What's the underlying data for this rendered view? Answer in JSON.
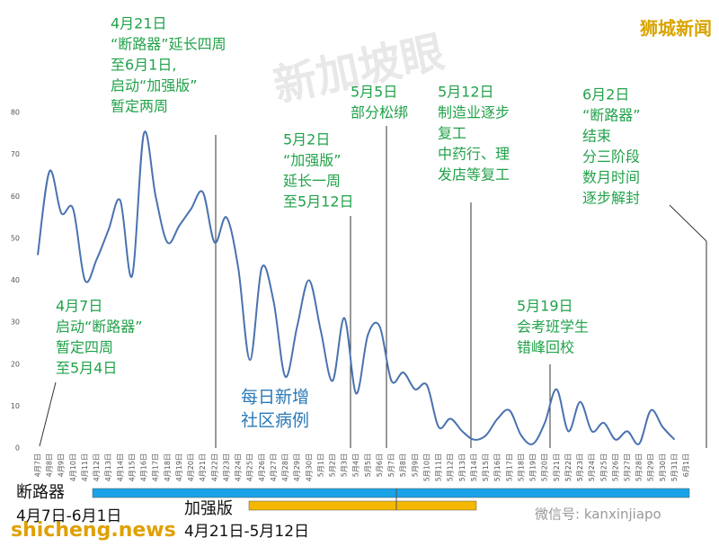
{
  "chart_data": {
    "type": "line",
    "categories": [
      "4月7日",
      "4月8日",
      "4月9日",
      "4月10日",
      "4月11日",
      "4月12日",
      "4月13日",
      "4月14日",
      "4月15日",
      "4月16日",
      "4月17日",
      "4月18日",
      "4月19日",
      "4月20日",
      "4月21日",
      "4月22日",
      "4月23日",
      "4月24日",
      "4月25日",
      "4月26日",
      "4月27日",
      "4月28日",
      "4月29日",
      "4月30日",
      "5月1日",
      "5月2日",
      "5月3日",
      "5月4日",
      "5月5日",
      "5月6日",
      "5月7日",
      "5月8日",
      "5月9日",
      "5月10日",
      "5月11日",
      "5月12日",
      "5月13日",
      "5月14日",
      "5月15日",
      "5月16日",
      "5月17日",
      "5月18日",
      "5月19日",
      "5月20日",
      "5月21日",
      "5月22日",
      "5月23日",
      "5月24日",
      "5月25日",
      "5月26日",
      "5月27日",
      "5月28日",
      "5月29日",
      "5月30日",
      "5月31日",
      "6月1日"
    ],
    "series": [
      {
        "name": "每日新增社区病例",
        "color": "#4a72b0",
        "values": [
          46,
          66,
          56,
          57,
          40,
          45,
          52,
          59,
          41,
          75,
          60,
          49,
          53,
          57,
          61,
          49,
          55,
          43,
          21,
          43,
          35,
          17,
          29,
          40,
          28,
          16,
          31,
          13,
          27,
          29,
          16,
          18,
          14,
          15,
          5,
          7,
          4,
          2,
          3,
          7,
          9,
          3,
          1,
          6,
          14,
          4,
          11,
          4,
          6,
          2,
          4,
          1,
          9,
          5,
          2,
          null
        ]
      }
    ],
    "series_label": [
      "每日新增",
      "社区病例"
    ],
    "ylim": [
      0,
      80
    ],
    "yticks": [
      0,
      10,
      20,
      30,
      40,
      50,
      60,
      70,
      80
    ],
    "annotations": [
      {
        "lines": [
          "4月21日",
          "“断路器”延长四周",
          "至6月1日,",
          "启动“加强版”",
          "暂定两周"
        ]
      },
      {
        "lines": [
          "4月7日",
          "启动“断路器”",
          "暂定四周",
          "至5月4日"
        ]
      },
      {
        "lines": [
          "5月2日",
          "“加强版”",
          "延长一周",
          "至5月12日"
        ]
      },
      {
        "lines": [
          "5月5日",
          "部分松绑"
        ]
      },
      {
        "lines": [
          "5月12日",
          "制造业逐步",
          "复工",
          "中药行、理",
          "发店等复工"
        ]
      },
      {
        "lines": [
          "6月2日",
          "“断路器”",
          "结束",
          "分三阶段",
          "数月时间",
          "逐步解封"
        ]
      },
      {
        "lines": [
          "5月19日",
          "会考班学生",
          "错峰回校"
        ]
      }
    ],
    "periods": [
      {
        "name": "断路器",
        "range": "4月7日-6月1日",
        "color": "#1aa3e8"
      },
      {
        "name": "加强版",
        "range": "4月21日-5月12日",
        "color": "#f5b800"
      }
    ],
    "brand": "狮城新闻",
    "watermark": "新加坡眼",
    "site": "shicheng.news",
    "wechat": "微信号: kanxinjiapo"
  }
}
